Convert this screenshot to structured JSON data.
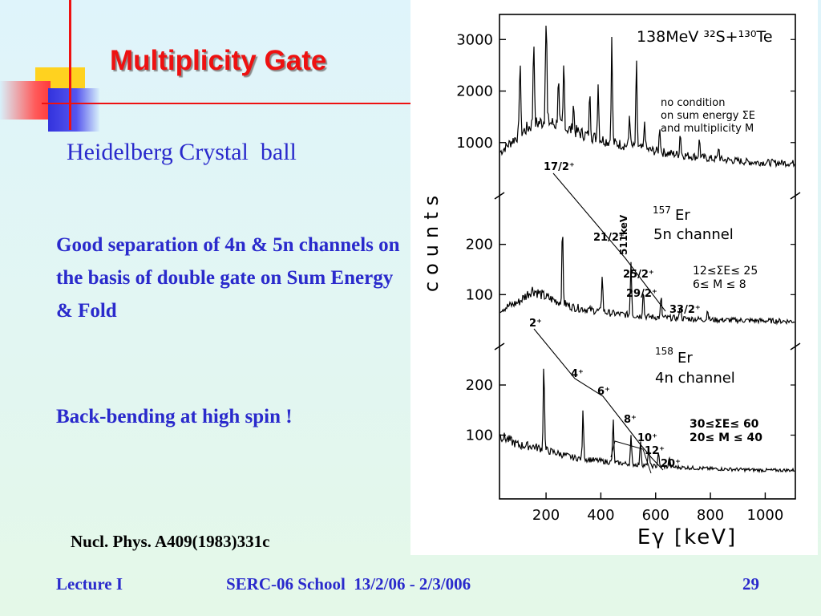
{
  "slide": {
    "title": "Multiplicity Gate",
    "subtitle": "Heidelberg Crystal  ball",
    "bullet_1": "Good separation of 4n & 5n channels on the basis of double gate on Sum Energy & Fold",
    "bullet_2": "Back-bending at high spin !",
    "reference": "Nucl. Phys. A409(1983)331c"
  },
  "footer": {
    "left": "Lecture I",
    "center": "SERC-06 School  13/2/06 - 2/3/006",
    "page": "29"
  },
  "colors": {
    "title": "#ee1111",
    "text": "#2a2acc",
    "deco_yellow": "#ffd21f",
    "deco_red": "#ff3a3a",
    "deco_blue": "#3333dd"
  },
  "chart_data": {
    "type": "line",
    "title": "138MeV ³²S+¹³⁰Te",
    "xlabel": "Eγ [keV]",
    "ylabel": "counts",
    "x_ticks": [
      200,
      400,
      600,
      800,
      1000
    ],
    "xlim": [
      30,
      1110
    ],
    "panels": [
      {
        "id": "ungated",
        "y_ticks": [
          1000,
          2000,
          3000
        ],
        "ylim": [
          0,
          3300
        ],
        "labels": [
          "no  condition",
          "on  sum energy ΣE",
          "and  multiplicity  M"
        ],
        "continuum": [
          [
            30,
            800
          ],
          [
            100,
            1150
          ],
          [
            150,
            1350
          ],
          [
            200,
            1420
          ],
          [
            260,
            1300
          ],
          [
            350,
            1140
          ],
          [
            450,
            990
          ],
          [
            550,
            880
          ],
          [
            650,
            790
          ],
          [
            800,
            690
          ],
          [
            950,
            620
          ],
          [
            1100,
            600
          ]
        ],
        "peaks": [
          [
            105,
            1500
          ],
          [
            155,
            1750
          ],
          [
            200,
            2900
          ],
          [
            245,
            950
          ],
          [
            265,
            1250
          ],
          [
            300,
            550
          ],
          [
            360,
            900
          ],
          [
            390,
            1100
          ],
          [
            440,
            2000
          ],
          [
            505,
            650
          ],
          [
            530,
            1650
          ],
          [
            560,
            550
          ],
          [
            615,
            500
          ],
          [
            690,
            450
          ],
          [
            760,
            350
          ],
          [
            830,
            250
          ]
        ]
      },
      {
        "id": "157Er",
        "nucleus": "¹⁵⁷Er",
        "label_nucleus": "157",
        "label_element": "Er",
        "label_channel": "5n  channel",
        "gate": [
          "12≤ΣE≤ 25",
          "6≤  M ≤ 8"
        ],
        "y_ticks": [
          100,
          200
        ],
        "ylim": [
          0,
          300
        ],
        "continuum": [
          [
            30,
            70
          ],
          [
            100,
            85
          ],
          [
            150,
            110
          ],
          [
            200,
            95
          ],
          [
            300,
            75
          ],
          [
            450,
            62
          ],
          [
            600,
            55
          ],
          [
            800,
            50
          ],
          [
            1000,
            48
          ],
          [
            1100,
            47
          ]
        ],
        "peaks": [
          [
            260,
            150
          ],
          [
            405,
            75
          ],
          [
            510,
            110
          ],
          [
            555,
            55
          ],
          [
            620,
            40
          ],
          [
            690,
            30
          ],
          [
            790,
            22
          ]
        ],
        "levels": [
          "17/2⁺",
          "21/2⁺",
          "25/2⁺",
          "29/2⁺",
          "33/2⁺"
        ],
        "annotation": "511keV"
      },
      {
        "id": "158Er",
        "nucleus": "¹⁵⁸Er",
        "label_nucleus": "158",
        "label_element": "Er",
        "label_channel": "4n  channel",
        "gate": [
          "30≤ΣE≤ 60",
          "20≤  M ≤ 40"
        ],
        "y_ticks": [
          100,
          200
        ],
        "ylim": [
          0,
          280
        ],
        "continuum": [
          [
            30,
            100
          ],
          [
            100,
            80
          ],
          [
            150,
            78
          ],
          [
            200,
            70
          ],
          [
            300,
            55
          ],
          [
            450,
            45
          ],
          [
            600,
            38
          ],
          [
            800,
            33
          ],
          [
            1000,
            30
          ],
          [
            1100,
            30
          ]
        ],
        "peaks": [
          [
            192,
            175
          ],
          [
            335,
            95
          ],
          [
            445,
            85
          ],
          [
            510,
            55
          ],
          [
            545,
            50
          ],
          [
            575,
            40
          ],
          [
            610,
            30
          ],
          [
            650,
            20
          ]
        ],
        "levels": [
          "2⁺",
          "4⁺",
          "6⁺",
          "8⁺",
          "10⁺",
          "12⁺",
          "20⁺"
        ]
      }
    ]
  }
}
